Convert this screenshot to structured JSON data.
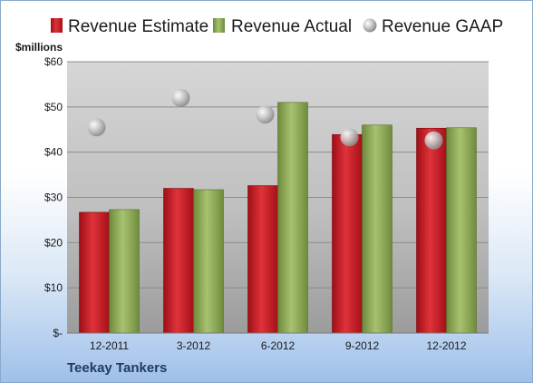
{
  "company": "Teekay Tankers",
  "colors": {
    "estimate": "#c8141e",
    "actual": "#8aa657",
    "gaap": "#b8b8b8"
  },
  "chart_data": {
    "type": "bar",
    "ylabel": "$millions",
    "ylim": [
      0,
      60
    ],
    "yticks": [
      0,
      10,
      20,
      30,
      40,
      50,
      60
    ],
    "ytick_labels": [
      "$-",
      "$10",
      "$20",
      "$30",
      "$40",
      "$50",
      "$60"
    ],
    "grid": true,
    "legend_position": "top",
    "categories": [
      "12-2011",
      "3-2012",
      "6-2012",
      "9-2012",
      "12-2012"
    ],
    "series": [
      {
        "name": "Revenue Estimate",
        "kind": "bar",
        "values": [
          26.7,
          32.0,
          32.6,
          43.9,
          45.3
        ]
      },
      {
        "name": "Revenue Actual",
        "kind": "bar",
        "values": [
          27.3,
          31.7,
          51.0,
          46.0,
          45.4
        ]
      },
      {
        "name": "Revenue GAAP",
        "kind": "marker",
        "values": [
          45.5,
          52.0,
          48.3,
          43.3,
          42.6
        ]
      }
    ]
  }
}
